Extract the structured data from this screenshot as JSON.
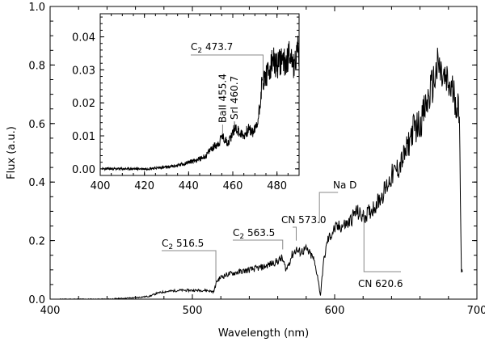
{
  "chart_data": [
    {
      "type": "line",
      "role": "main",
      "xlabel": "Wavelength (nm)",
      "ylabel": "Flux (a.u.)",
      "xlim": [
        400,
        700
      ],
      "ylim": [
        0.0,
        1.0
      ],
      "xticks": [
        400,
        500,
        600,
        700
      ],
      "xtick_labels": [
        "400",
        "500",
        "600",
        "700"
      ],
      "yticks": [
        0.0,
        0.2,
        0.4,
        0.6,
        0.8,
        1.0
      ],
      "ytick_labels": [
        "0.0",
        "0.2",
        "0.4",
        "0.6",
        "0.8",
        "1.0"
      ],
      "grid": false,
      "series": [
        {
          "color": "#000000",
          "x": [
            407,
            420,
            440,
            460,
            470,
            475,
            480,
            490,
            500,
            510,
            515,
            517,
            520,
            525,
            530,
            540,
            545,
            550,
            555,
            560,
            563,
            566,
            570,
            573,
            575,
            580,
            585,
            588,
            590,
            592,
            595,
            600,
            605,
            610,
            615,
            620,
            625,
            630,
            635,
            640,
            645,
            650,
            655,
            660,
            665,
            670,
            673,
            675,
            680,
            684,
            687,
            688,
            689,
            690
          ],
          "y": [
            0.0,
            0.0,
            0.0,
            0.005,
            0.01,
            0.02,
            0.025,
            0.03,
            0.03,
            0.03,
            0.025,
            0.06,
            0.075,
            0.085,
            0.09,
            0.1,
            0.105,
            0.11,
            0.12,
            0.13,
            0.14,
            0.1,
            0.15,
            0.17,
            0.16,
            0.17,
            0.14,
            0.08,
            0.01,
            0.12,
            0.2,
            0.24,
            0.25,
            0.26,
            0.3,
            0.28,
            0.3,
            0.33,
            0.37,
            0.42,
            0.45,
            0.5,
            0.58,
            0.6,
            0.67,
            0.75,
            0.8,
            0.76,
            0.73,
            0.7,
            0.65,
            0.55,
            0.1,
            0.1
          ]
        }
      ],
      "annotations": [
        {
          "species": "C",
          "subscript": "2",
          "value": "516.5",
          "text": "C2 516.5",
          "x": 516.5
        },
        {
          "species": "C",
          "subscript": "2",
          "value": "563.5",
          "text": "C2 563.5",
          "x": 563.5
        },
        {
          "species": "CN",
          "subscript": "",
          "value": "573.0",
          "text": "CN 573.0",
          "x": 573.0
        },
        {
          "species": "Na D",
          "subscript": "",
          "value": "",
          "text": "Na D",
          "x": 589.3
        },
        {
          "species": "CN",
          "subscript": "",
          "value": "620.6",
          "text": "CN 620.6",
          "x": 620.6
        }
      ]
    },
    {
      "type": "line",
      "role": "inset",
      "xlabel": "",
      "ylabel": "",
      "xlim": [
        400,
        490
      ],
      "ylim": [
        -0.002,
        0.047
      ],
      "xticks": [
        400,
        420,
        440,
        460,
        480
      ],
      "xtick_labels": [
        "400",
        "420",
        "440",
        "460",
        "480"
      ],
      "yticks": [
        0.0,
        0.01,
        0.02,
        0.03,
        0.04
      ],
      "ytick_labels": [
        "0.00",
        "0.01",
        "0.02",
        "0.03",
        "0.04"
      ],
      "grid": false,
      "series": [
        {
          "color": "#000000",
          "x": [
            401,
            410,
            420,
            430,
            435,
            440,
            445,
            448,
            450,
            452,
            454,
            455,
            456,
            458,
            460,
            461,
            463,
            465,
            467,
            469,
            471,
            472,
            473,
            474,
            475,
            477,
            478,
            480,
            482,
            484,
            485,
            486,
            487,
            488,
            489,
            490
          ],
          "y": [
            0.0,
            0.0,
            0.0,
            0.0005,
            0.001,
            0.002,
            0.003,
            0.004,
            0.006,
            0.007,
            0.008,
            0.01,
            0.009,
            0.008,
            0.011,
            0.013,
            0.011,
            0.01,
            0.012,
            0.011,
            0.013,
            0.018,
            0.025,
            0.027,
            0.028,
            0.03,
            0.033,
            0.031,
            0.033,
            0.032,
            0.034,
            0.036,
            0.033,
            0.03,
            0.037,
            0.034
          ]
        }
      ],
      "annotations": [
        {
          "species": "C",
          "subscript": "2",
          "value": "473.7",
          "text": "C2 473.7",
          "x": 473.7
        },
        {
          "species": "BaII",
          "subscript": "",
          "value": "455.4",
          "text": "BaII 455.4",
          "x": 455.4
        },
        {
          "species": "SrI",
          "subscript": "",
          "value": "460.7",
          "text": "SrI 460.7",
          "x": 460.7
        }
      ]
    }
  ]
}
